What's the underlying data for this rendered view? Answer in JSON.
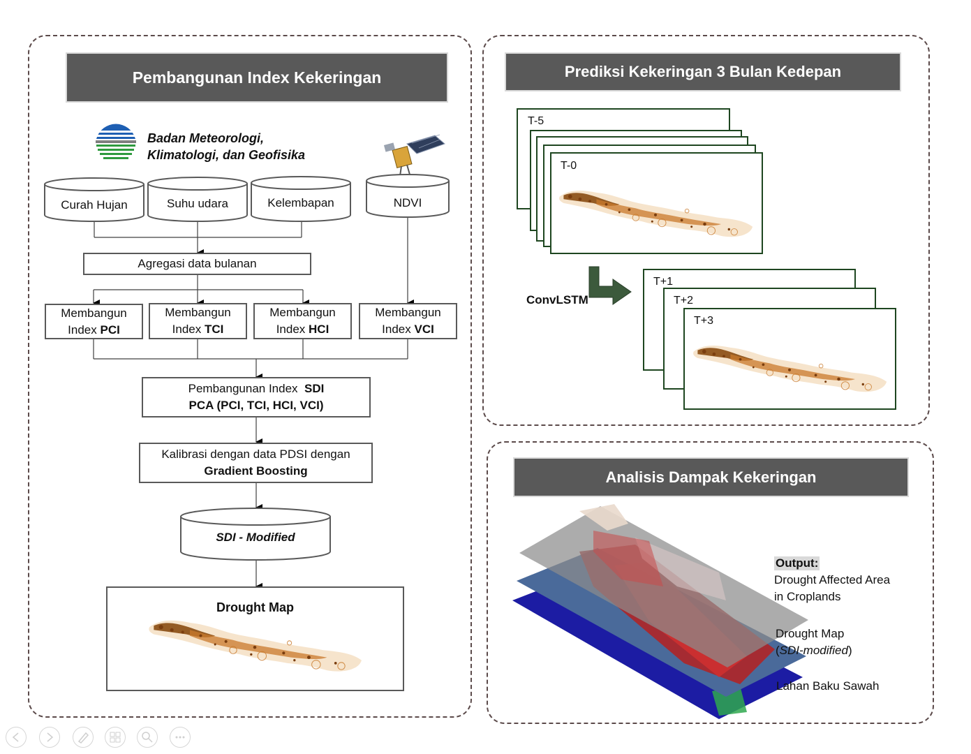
{
  "left": {
    "title": "Pembangunan Index Kekeringan",
    "bmkg_line1": "Badan Meteorologi,",
    "bmkg_line2": "Klimatologi, dan Geofisika",
    "sources": [
      "Curah Hujan",
      "Suhu udara",
      "Kelembapan",
      "NDVI"
    ],
    "aggregate": "Agregasi data bulanan",
    "indexes": [
      {
        "line1": "Membangun",
        "prefix": "Index ",
        "bold": "PCI"
      },
      {
        "line1": "Membangun",
        "prefix": "Index ",
        "bold": "TCI"
      },
      {
        "line1": "Membangun",
        "prefix": "Index ",
        "bold": "HCI"
      },
      {
        "line1": "Membangun",
        "prefix": "Index ",
        "bold": "VCI"
      }
    ],
    "sdi_line1_prefix": "Pembangunan Index  ",
    "sdi_line1_bold": "SDI",
    "sdi_line2": "PCA (PCI, TCI, HCI, VCI)",
    "calib_line1": "Kalibrasi dengan data PDSI dengan",
    "calib_line2": "Gradient Boosting",
    "sdi_modified": "SDI - Modified",
    "drought_map": "Drought Map"
  },
  "prediction": {
    "title": "Prediksi Kekeringan 3 Bulan Kedepan",
    "input_first": "T-5",
    "input_last": "T-0",
    "model": "ConvLSTM",
    "outputs": [
      "T+1",
      "T+2",
      "T+3"
    ]
  },
  "impact": {
    "title": "Analisis Dampak Kekeringan",
    "output_label": "Output:",
    "output_line1": "Drought Affected Area",
    "output_line2": "in Croplands",
    "layer2_line1": "Drought Map",
    "layer2_open": "(",
    "layer2_italic": "SDI-modified",
    "layer2_close": ")",
    "layer3": "Lahan Baku Sawah"
  },
  "colors": {
    "banner": "#595959",
    "frame": "#1e4620",
    "map_orange": "#c97a2c",
    "arrow_green": "#3c5a3c"
  },
  "toolbar": [
    "prev-icon",
    "next-icon",
    "pen-icon",
    "slides-icon",
    "zoom-icon",
    "more-icon"
  ]
}
